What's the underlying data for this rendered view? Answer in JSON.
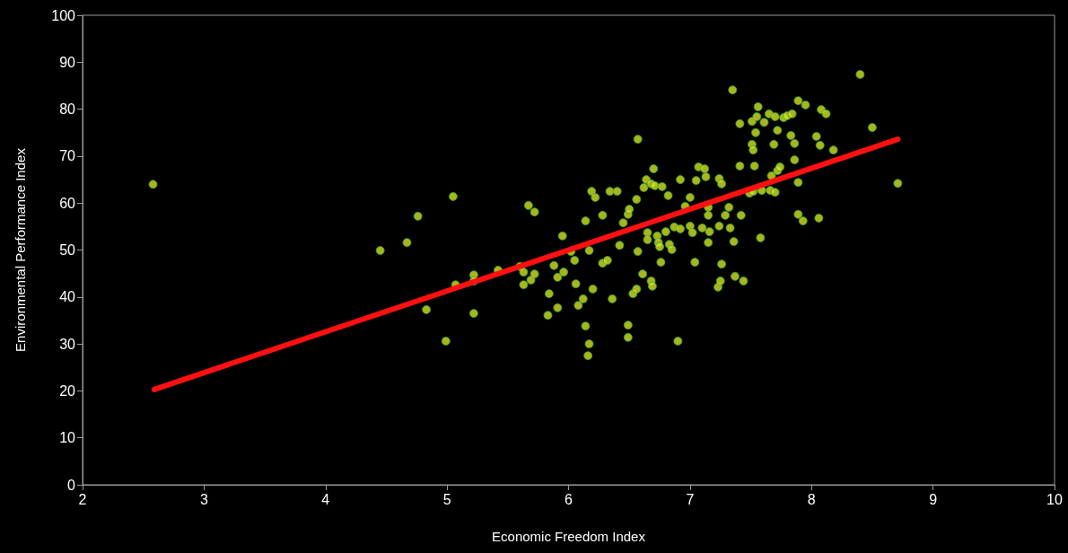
{
  "chart_data": {
    "type": "scatter",
    "xlabel": "Economic Freedom Index",
    "ylabel": "Environmental Performance Index",
    "xlim": [
      2,
      10
    ],
    "xticks": [
      2,
      3,
      4,
      5,
      6,
      7,
      8,
      9,
      10
    ],
    "ylim": [
      0,
      100
    ],
    "yticks": [
      0,
      10,
      20,
      30,
      40,
      50,
      60,
      70,
      80,
      90,
      100
    ],
    "grid": false,
    "series": [
      {
        "marker": "circle",
        "color": "#d8e020",
        "x": [
          2.58,
          4.45,
          4.67,
          4.76,
          4.83,
          4.99,
          5.05,
          5.07,
          5.22,
          5.22,
          5.22,
          5.42,
          5.6,
          5.63,
          5.63,
          5.67,
          5.72,
          5.69,
          5.72,
          5.83,
          5.84,
          5.88,
          5.91,
          5.91,
          5.95,
          5.96,
          6.02,
          6.05,
          6.06,
          6.08,
          6.12,
          6.14,
          6.14,
          6.17,
          6.16,
          6.17,
          6.19,
          6.22,
          6.2,
          6.28,
          6.28,
          6.32,
          6.34,
          6.36,
          6.4,
          6.42,
          6.45,
          6.49,
          6.5,
          6.49,
          6.49,
          6.53,
          6.56,
          6.56,
          6.57,
          6.57,
          6.61,
          6.62,
          6.64,
          6.65,
          6.65,
          6.68,
          6.68,
          6.7,
          6.69,
          6.71,
          6.73,
          6.74,
          6.75,
          6.77,
          6.76,
          6.8,
          6.82,
          6.83,
          6.85,
          6.87,
          6.9,
          6.92,
          6.92,
          6.96,
          7.0,
          7.0,
          7.02,
          7.04,
          7.05,
          7.07,
          7.1,
          7.12,
          7.13,
          7.15,
          7.15,
          7.15,
          7.16,
          7.23,
          7.25,
          7.24,
          7.24,
          7.26,
          7.26,
          7.29,
          7.32,
          7.33,
          7.35,
          7.36,
          7.37,
          7.41,
          7.42,
          7.41,
          7.44,
          7.49,
          7.51,
          7.51,
          7.52,
          7.52,
          7.53,
          7.54,
          7.55,
          7.56,
          7.58,
          7.59,
          7.61,
          7.65,
          7.66,
          7.67,
          7.69,
          7.7,
          7.7,
          7.72,
          7.72,
          7.74,
          7.77,
          7.8,
          7.83,
          7.84,
          7.86,
          7.86,
          7.89,
          7.89,
          7.89,
          7.93,
          7.95,
          8.04,
          8.06,
          8.07,
          8.08,
          8.12,
          8.18,
          8.4,
          8.5,
          8.71
        ],
        "values": [
          64,
          49.9,
          51.6,
          57.2,
          37.3,
          30.6,
          61.4,
          42.6,
          36.5,
          44.7,
          43.4,
          45.7,
          46.5,
          45.3,
          42.6,
          59.5,
          58.1,
          43.6,
          44.9,
          36.1,
          40.7,
          46.7,
          37.7,
          44.2,
          53,
          45.3,
          49.7,
          47.8,
          42.8,
          38.2,
          39.6,
          56.2,
          33.8,
          30,
          27.5,
          49.9,
          62.5,
          61.2,
          41.7,
          57.4,
          47.2,
          47.8,
          62.5,
          39.6,
          62.5,
          51,
          55.8,
          57.6,
          58.7,
          34,
          31.4,
          40.7,
          41.7,
          60.8,
          49.7,
          73.6,
          44.9,
          63.3,
          65,
          53.7,
          52.2,
          64.1,
          43.4,
          67.3,
          42.3,
          63.7,
          53,
          51.6,
          50.7,
          63.5,
          47.4,
          53.9,
          61.6,
          51.2,
          50.1,
          54.9,
          30.6,
          65,
          54.5,
          59.3,
          61.2,
          55.1,
          53.7,
          47.4,
          64.8,
          67.7,
          54.7,
          67.3,
          65.6,
          59.1,
          57.4,
          51.6,
          53.9,
          42.1,
          43.4,
          55.1,
          65.2,
          64.1,
          47,
          57.4,
          59.1,
          54.7,
          84.1,
          51.8,
          44.4,
          76.9,
          57.4,
          67.9,
          43.4,
          62.1,
          72.5,
          77.4,
          71.3,
          62.5,
          67.9,
          75,
          78.4,
          80.5,
          52.6,
          62.7,
          77.2,
          79,
          62.7,
          65.8,
          72.5,
          78.4,
          62.3,
          75.5,
          66.9,
          67.7,
          78.2,
          78.6,
          74.4,
          79,
          72.7,
          69.2,
          81.8,
          64.4,
          57.6,
          56.2,
          80.9,
          74.2,
          56.8,
          72.3,
          79.9,
          79,
          71.3,
          87.4,
          76.1,
          64.2
        ]
      },
      {
        "type": "line",
        "marker": "none",
        "color": "#ff1010",
        "x": [
          2.59,
          8.71
        ],
        "values": [
          20.3,
          73.6
        ]
      }
    ]
  }
}
